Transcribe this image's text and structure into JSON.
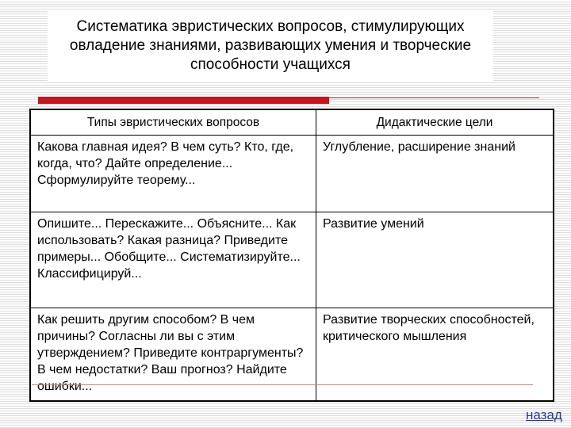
{
  "title": "Систематика эвристических вопросов, стимулирующих овладение знаниями, развивающих умения и творческие способности учащихся",
  "table": {
    "headers": [
      "Типы эвристических вопросов",
      "Дидактические цели"
    ],
    "rows": [
      {
        "questions": "Какова главная идея? В чем суть? Кто, где, когда, что? Дайте определение... Сформулируйте теорему...",
        "goal": "Углубление, расширение знаний"
      },
      {
        "questions": "Опишите... Перескажите... Объясните... Как использовать? Какая разница? Приведите примеры... Обобщите... Систематизируйте... Классифицируй...",
        "goal": "Развитие умений"
      },
      {
        "questions": "Как решить другим способом? В чем причины? Согласны ли вы с этим утверждением? Приведите контраргументы? В чем недостатки? Ваш прогноз? Найдите ошибки...",
        "goal": "Развитие творческих способностей, критического мышления"
      }
    ]
  },
  "nav": {
    "back_label": "назад"
  },
  "colors": {
    "accent": "#c8141b",
    "link": "#1f3a8f"
  }
}
